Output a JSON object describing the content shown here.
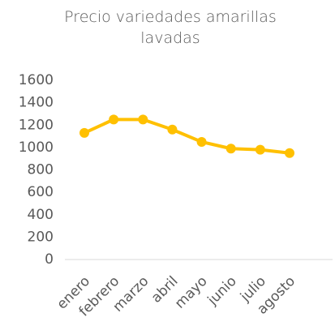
{
  "chart_data": {
    "type": "line",
    "title": "Precio variedades amarillas lavadas",
    "categories": [
      "enero",
      "febrero",
      "marzo",
      "abril",
      "mayo",
      "junio",
      "julio",
      "agosto"
    ],
    "series": [
      {
        "name": "Precio",
        "color": "#FFC000",
        "values": [
          1130,
          1250,
          1250,
          1160,
          1050,
          990,
          980,
          950
        ]
      }
    ],
    "ylim": [
      0,
      1600
    ],
    "yticks": [
      0,
      200,
      400,
      600,
      800,
      1000,
      1200,
      1400,
      1600
    ],
    "grid": false
  }
}
